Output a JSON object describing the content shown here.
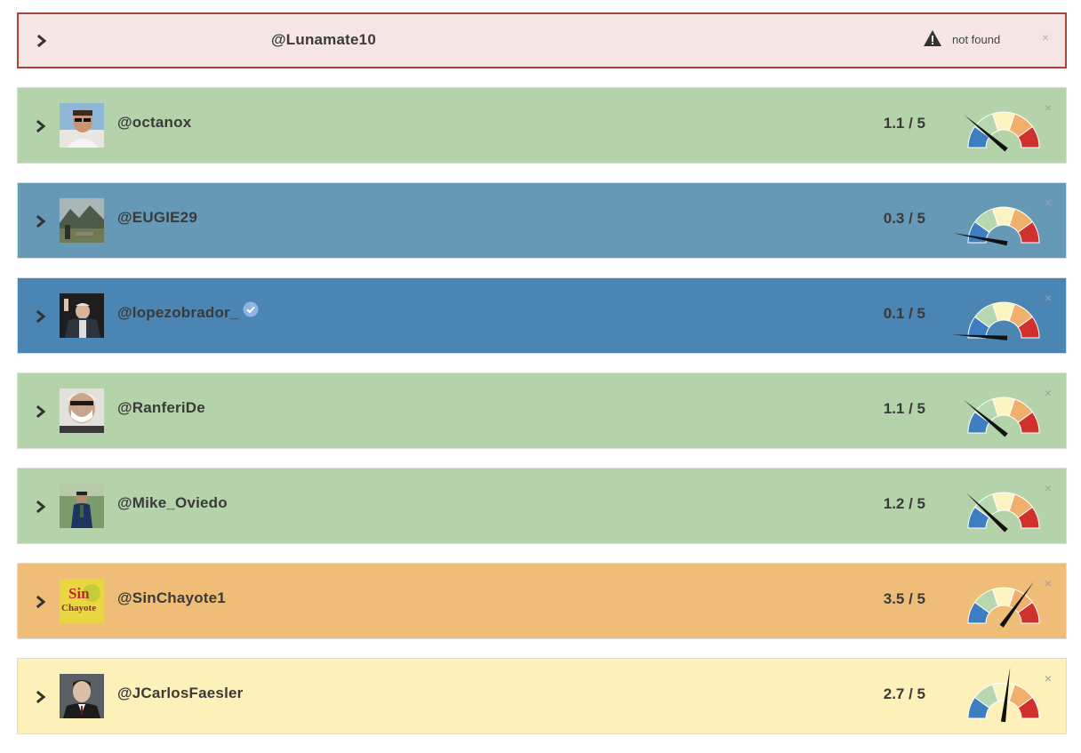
{
  "error_row": {
    "handle": "@Lunamate10",
    "status": "not found",
    "close": "×",
    "background": "#f5e5e5",
    "border": "#a8433b"
  },
  "rows": [
    {
      "handle": "@octanox",
      "score": "1.1 / 5",
      "value": 1.1,
      "verified": false,
      "color": "#b5d3aa",
      "avatar": "man-sunglasses"
    },
    {
      "handle": "@EUGIE29",
      "score": "0.3 / 5",
      "value": 0.3,
      "verified": false,
      "color": "#6699b5",
      "avatar": "landscape-ruins"
    },
    {
      "handle": "@lopezobrador_",
      "score": "0.1 / 5",
      "value": 0.1,
      "verified": true,
      "color": "#4a85b4",
      "avatar": "man-waving"
    },
    {
      "handle": "@RanferiDe",
      "score": "1.1 / 5",
      "value": 1.1,
      "verified": false,
      "color": "#b5d3aa",
      "avatar": "man-mask"
    },
    {
      "handle": "@Mike_Oviedo",
      "score": "1.2 / 5",
      "value": 1.2,
      "verified": false,
      "color": "#b5d3aa",
      "avatar": "man-outdoors"
    },
    {
      "handle": "@SinChayote1",
      "score": "3.5 / 5",
      "value": 3.5,
      "verified": false,
      "color": "#f0bd78",
      "avatar": "logo-sin-chayote",
      "avatar_text_top": "Sin",
      "avatar_text_bottom": "Chayote"
    },
    {
      "handle": "@JCarlosFaesler",
      "score": "2.7 / 5",
      "value": 2.7,
      "verified": false,
      "color": "#fdf1b9",
      "avatar": "man-suit"
    }
  ],
  "close_label": "×",
  "gauge_colors": [
    "#3d7ec0",
    "#b7d7b0",
    "#fbf3c0",
    "#f0b06b",
    "#d0312d"
  ],
  "gauge_max": 5
}
